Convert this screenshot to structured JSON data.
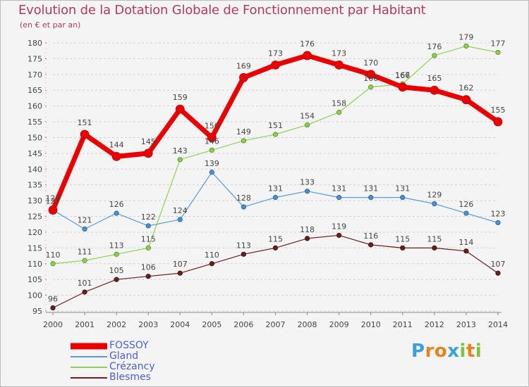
{
  "title": "Evolution de la Dotation Globale de Fonctionnement par Habitant",
  "subtitle": "(en € et par an)",
  "brand": {
    "text": "Proxiti",
    "letters": [
      "P",
      "r",
      "o",
      "x",
      "i",
      "t",
      "i"
    ],
    "colors": [
      "#3aa0d8",
      "#e8821e",
      "#e8821e",
      "#3aa0d8",
      "#7cc243",
      "#e8821e",
      "#7cc243"
    ]
  },
  "chart_data": {
    "type": "line",
    "title": "Evolution de la Dotation Globale de Fonctionnement par Habitant",
    "subtitle": "(en € et par an)",
    "xlabel": "",
    "ylabel": "",
    "x": [
      "2000",
      "2001",
      "2002",
      "2003",
      "2004",
      "2005",
      "2006",
      "2007",
      "2008",
      "2009",
      "2010",
      "2011",
      "2012",
      "2013",
      "2014"
    ],
    "ylim": [
      95,
      180
    ],
    "yticks": [
      95,
      100,
      105,
      110,
      115,
      120,
      125,
      130,
      135,
      140,
      145,
      150,
      155,
      160,
      165,
      170,
      175,
      180
    ],
    "grid": "horizontal dashed",
    "series": [
      {
        "name": "FOSSOY",
        "color": "#e80000",
        "values": [
          127,
          151,
          144,
          145,
          159,
          150,
          169,
          173,
          176,
          173,
          170,
          166,
          165,
          162,
          155
        ]
      },
      {
        "name": "Gland",
        "color": "#5b9bd5",
        "values": [
          127,
          121,
          126,
          122,
          124,
          139,
          128,
          131,
          133,
          131,
          131,
          131,
          129,
          126,
          123
        ]
      },
      {
        "name": "Crézancy",
        "color": "#8fd05a",
        "values": [
          110,
          111,
          113,
          115,
          143,
          146,
          149,
          151,
          154,
          158,
          166,
          167,
          176,
          179,
          177
        ]
      },
      {
        "name": "Blesmes",
        "color": "#6b1e1e",
        "values": [
          96,
          101,
          105,
          106,
          107,
          110,
          113,
          115,
          118,
          119,
          116,
          115,
          115,
          114,
          107
        ]
      }
    ],
    "data_labels": {
      "FOSSOY": [
        "127",
        "151",
        "144",
        "145",
        "159",
        "150",
        "169",
        "173",
        "176",
        "173",
        "170",
        "166",
        "165",
        "162",
        "155"
      ],
      "Gland": [
        "127",
        "121",
        "126",
        "122",
        "124",
        "139",
        "128",
        "131",
        "133",
        "131",
        "131",
        "131",
        "129",
        "126",
        "123"
      ],
      "Crézancy": [
        "110",
        "111",
        "113",
        "115",
        "143",
        "146",
        "149",
        "151",
        "154",
        "158",
        "166",
        "167",
        "176",
        "179",
        "177"
      ],
      "Blesmes": [
        "96",
        "101",
        "105",
        "106",
        "107",
        "110",
        "113",
        "115",
        "118",
        "119",
        "116",
        "115",
        "115",
        "114",
        "107"
      ]
    }
  },
  "legend": [
    {
      "name": "FOSSOY",
      "color": "#e80000"
    },
    {
      "name": "Gland",
      "color": "#5b9bd5"
    },
    {
      "name": "Crézancy",
      "color": "#8fd05a"
    },
    {
      "name": "Blesmes",
      "color": "#6b1e1e"
    }
  ]
}
